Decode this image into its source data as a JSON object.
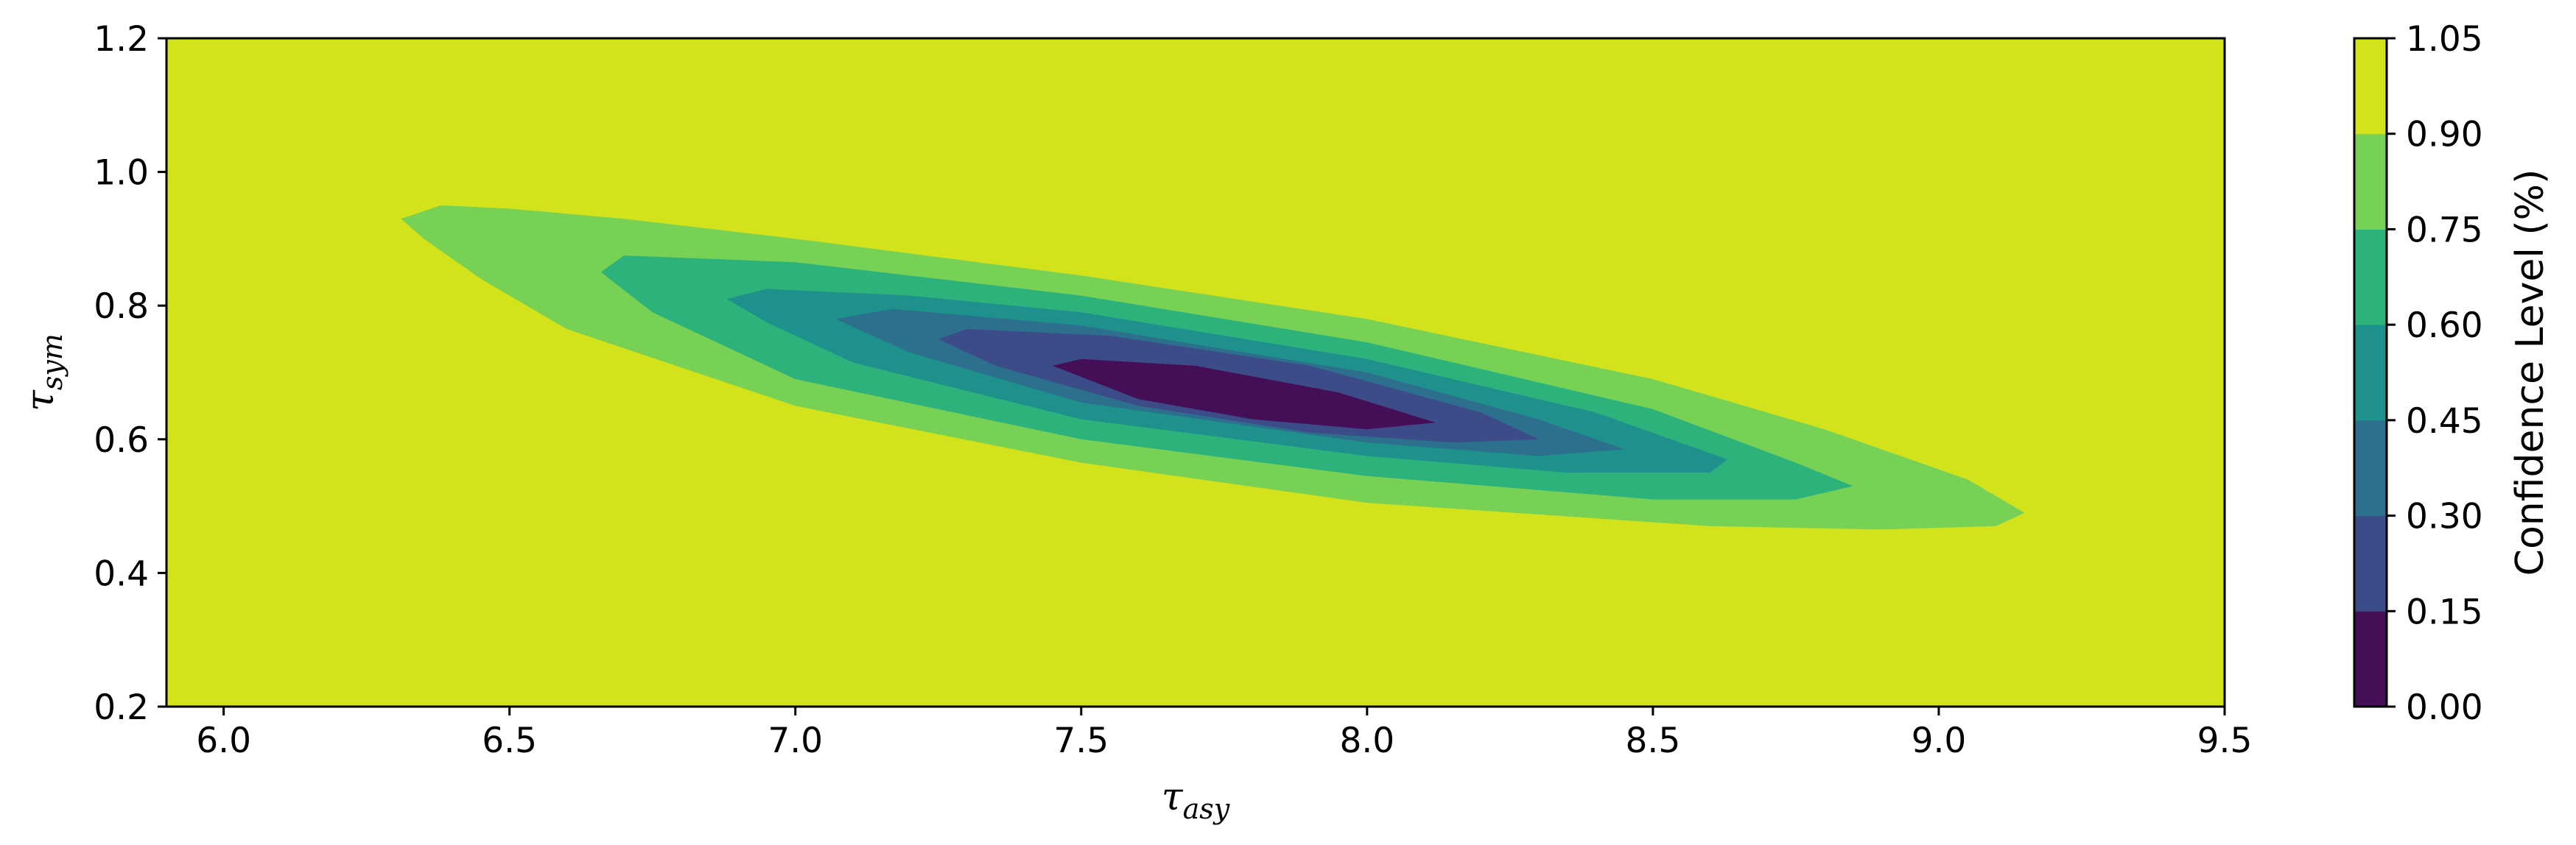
{
  "chart_data": {
    "type": "contour",
    "xlabel": {
      "main": "τ",
      "sub": "asy"
    },
    "ylabel": {
      "main": "τ",
      "sub": "sym"
    },
    "xlim": [
      5.9,
      9.5
    ],
    "ylim": [
      0.2,
      1.2
    ],
    "x_ticks": [
      "6.0",
      "6.5",
      "7.0",
      "7.5",
      "8.0",
      "8.5",
      "9.0",
      "9.5"
    ],
    "y_ticks": [
      "0.2",
      "0.4",
      "0.6",
      "0.8",
      "1.0",
      "1.2"
    ],
    "colorbar": {
      "label": "Confidence Level (%)",
      "levels": [
        "0.00",
        "0.15",
        "0.30",
        "0.45",
        "0.60",
        "0.75",
        "0.90",
        "1.05"
      ],
      "colors": [
        "#440f56",
        "#3c4c89",
        "#2c708e",
        "#1f918c",
        "#2eb27c",
        "#77d154",
        "#d2e21b"
      ]
    },
    "background_color": "#d2e21b",
    "contours": [
      {
        "level": "0.75-0.90",
        "color": "#77d154",
        "points": [
          [
            6.31,
            0.93
          ],
          [
            6.38,
            0.95
          ],
          [
            6.5,
            0.945
          ],
          [
            6.7,
            0.93
          ],
          [
            7.0,
            0.9
          ],
          [
            7.5,
            0.845
          ],
          [
            8.0,
            0.78
          ],
          [
            8.5,
            0.69
          ],
          [
            8.8,
            0.615
          ],
          [
            9.05,
            0.54
          ],
          [
            9.15,
            0.49
          ],
          [
            9.1,
            0.47
          ],
          [
            8.9,
            0.465
          ],
          [
            8.6,
            0.47
          ],
          [
            8.0,
            0.505
          ],
          [
            7.5,
            0.565
          ],
          [
            7.0,
            0.65
          ],
          [
            6.6,
            0.765
          ],
          [
            6.45,
            0.84
          ],
          [
            6.35,
            0.9
          ]
        ]
      },
      {
        "level": "0.60-0.75",
        "color": "#2eb27c",
        "points": [
          [
            6.66,
            0.85
          ],
          [
            6.7,
            0.875
          ],
          [
            7.0,
            0.865
          ],
          [
            7.5,
            0.815
          ],
          [
            8.0,
            0.745
          ],
          [
            8.5,
            0.645
          ],
          [
            8.75,
            0.565
          ],
          [
            8.85,
            0.53
          ],
          [
            8.75,
            0.51
          ],
          [
            8.5,
            0.51
          ],
          [
            8.0,
            0.545
          ],
          [
            7.5,
            0.6
          ],
          [
            7.0,
            0.69
          ],
          [
            6.75,
            0.79
          ]
        ]
      },
      {
        "level": "0.45-0.60",
        "color": "#1f918c",
        "points": [
          [
            6.88,
            0.81
          ],
          [
            6.95,
            0.825
          ],
          [
            7.2,
            0.815
          ],
          [
            7.5,
            0.79
          ],
          [
            8.0,
            0.72
          ],
          [
            8.4,
            0.64
          ],
          [
            8.63,
            0.57
          ],
          [
            8.6,
            0.55
          ],
          [
            8.35,
            0.55
          ],
          [
            8.0,
            0.575
          ],
          [
            7.5,
            0.63
          ],
          [
            7.1,
            0.715
          ],
          [
            6.95,
            0.775
          ]
        ]
      },
      {
        "level": "0.30-0.45",
        "color": "#2c708e",
        "points": [
          [
            7.07,
            0.78
          ],
          [
            7.17,
            0.795
          ],
          [
            7.5,
            0.77
          ],
          [
            8.0,
            0.7
          ],
          [
            8.3,
            0.63
          ],
          [
            8.45,
            0.585
          ],
          [
            8.3,
            0.575
          ],
          [
            8.0,
            0.595
          ],
          [
            7.5,
            0.655
          ],
          [
            7.2,
            0.73
          ]
        ]
      },
      {
        "level": "0.15-0.30",
        "color": "#3c4c89",
        "points": [
          [
            7.25,
            0.75
          ],
          [
            7.3,
            0.765
          ],
          [
            7.55,
            0.755
          ],
          [
            7.9,
            0.71
          ],
          [
            8.2,
            0.64
          ],
          [
            8.3,
            0.6
          ],
          [
            8.15,
            0.595
          ],
          [
            7.9,
            0.61
          ],
          [
            7.6,
            0.65
          ],
          [
            7.35,
            0.71
          ]
        ]
      },
      {
        "level": "0.00-0.15",
        "color": "#440f56",
        "points": [
          [
            7.45,
            0.71
          ],
          [
            7.5,
            0.72
          ],
          [
            7.7,
            0.71
          ],
          [
            7.95,
            0.67
          ],
          [
            8.12,
            0.625
          ],
          [
            8.0,
            0.615
          ],
          [
            7.8,
            0.63
          ],
          [
            7.6,
            0.66
          ]
        ]
      }
    ]
  }
}
